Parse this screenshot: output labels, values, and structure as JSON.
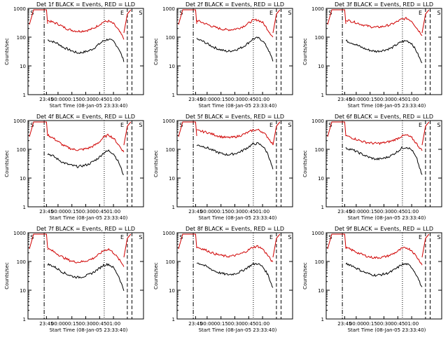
{
  "colors": {
    "events": "#000000",
    "lld": "#d00000"
  },
  "panel_common": {
    "xlabel": "Start Time (08-Jan-05 23:33:40)",
    "ylabel": "Counts/sec",
    "x_tick_labels": [
      "23:45",
      "00:00",
      "00:15",
      "00:30",
      "00:45",
      "01:00"
    ],
    "y_tick_labels": [
      "1",
      "10",
      "100",
      "1000"
    ],
    "ylim": [
      1,
      1000
    ],
    "yscale": "log",
    "marker_labels": [
      "S",
      "E",
      "S"
    ]
  },
  "chart_data": [
    {
      "type": "line",
      "title": "Det 1f BLACK = Events, RED = LLD",
      "series": [
        {
          "name": "Events",
          "color": "black",
          "values": [
            80,
            70,
            60,
            45,
            38,
            32,
            28,
            30,
            33,
            40,
            55,
            75,
            85,
            70,
            40,
            15
          ]
        },
        {
          "name": "LLD",
          "color": "red",
          "values": [
            380,
            330,
            290,
            230,
            190,
            170,
            160,
            165,
            175,
            200,
            260,
            340,
            360,
            290,
            170,
            90
          ]
        }
      ]
    },
    {
      "type": "line",
      "title": "Det 2f BLACK = Events, RED = LLD",
      "series": [
        {
          "name": "Events",
          "color": "black",
          "values": [
            85,
            75,
            60,
            48,
            40,
            35,
            32,
            34,
            38,
            45,
            60,
            85,
            95,
            75,
            40,
            15
          ]
        },
        {
          "name": "LLD",
          "color": "red",
          "values": [
            380,
            330,
            280,
            240,
            210,
            190,
            180,
            185,
            200,
            230,
            290,
            380,
            400,
            320,
            180,
            100
          ]
        }
      ]
    },
    {
      "type": "line",
      "title": "Det 3f BLACK = Events, RED = LLD",
      "series": [
        {
          "name": "Events",
          "color": "black",
          "values": [
            75,
            65,
            55,
            45,
            38,
            34,
            32,
            34,
            37,
            42,
            55,
            70,
            75,
            60,
            30,
            12
          ]
        },
        {
          "name": "LLD",
          "color": "red",
          "values": [
            400,
            360,
            320,
            280,
            250,
            230,
            220,
            230,
            250,
            280,
            340,
            420,
            450,
            360,
            200,
            120
          ]
        }
      ]
    },
    {
      "type": "line",
      "title": "Det 4f BLACK = Events, RED = LLD",
      "series": [
        {
          "name": "Events",
          "color": "black",
          "values": [
            70,
            60,
            45,
            35,
            30,
            27,
            25,
            27,
            30,
            38,
            50,
            75,
            90,
            70,
            35,
            12
          ]
        },
        {
          "name": "LLD",
          "color": "red",
          "values": [
            320,
            250,
            190,
            140,
            115,
            100,
            95,
            100,
            110,
            130,
            170,
            260,
            320,
            240,
            140,
            80
          ]
        }
      ]
    },
    {
      "type": "line",
      "title": "Det 5f BLACK = Events, RED = LLD",
      "series": [
        {
          "name": "Events",
          "color": "black",
          "values": [
            140,
            130,
            115,
            95,
            80,
            70,
            65,
            68,
            75,
            90,
            115,
            150,
            160,
            130,
            70,
            20
          ]
        },
        {
          "name": "LLD",
          "color": "red",
          "values": [
            450,
            420,
            390,
            340,
            300,
            270,
            255,
            260,
            280,
            320,
            380,
            460,
            480,
            400,
            260,
            150
          ]
        }
      ]
    },
    {
      "type": "line",
      "title": "Det 6f BLACK = Events, RED = LLD",
      "series": [
        {
          "name": "Events",
          "color": "black",
          "values": [
            110,
            100,
            85,
            70,
            58,
            50,
            45,
            47,
            52,
            62,
            80,
            110,
            120,
            95,
            45,
            12
          ]
        },
        {
          "name": "LLD",
          "color": "red",
          "values": [
            300,
            260,
            225,
            195,
            175,
            165,
            160,
            165,
            175,
            195,
            230,
            290,
            310,
            250,
            150,
            90
          ]
        }
      ]
    },
    {
      "type": "line",
      "title": "Det 7f BLACK = Events, RED = LLD",
      "series": [
        {
          "name": "Events",
          "color": "black",
          "values": [
            80,
            70,
            55,
            42,
            35,
            30,
            28,
            30,
            34,
            42,
            55,
            75,
            80,
            60,
            30,
            10
          ]
        },
        {
          "name": "LLD",
          "color": "red",
          "values": [
            280,
            230,
            180,
            140,
            115,
            100,
            95,
            100,
            110,
            130,
            170,
            240,
            270,
            200,
            120,
            70
          ]
        }
      ]
    },
    {
      "type": "line",
      "title": "Det 8f BLACK = Events, RED = LLD",
      "series": [
        {
          "name": "Events",
          "color": "black",
          "values": [
            90,
            80,
            65,
            52,
            43,
            38,
            35,
            36,
            40,
            48,
            62,
            80,
            85,
            65,
            35,
            12
          ]
        },
        {
          "name": "LLD",
          "color": "red",
          "values": [
            320,
            280,
            240,
            200,
            175,
            160,
            150,
            155,
            170,
            195,
            240,
            310,
            340,
            270,
            160,
            90
          ]
        }
      ]
    },
    {
      "type": "line",
      "title": "Det 9f BLACK = Events, RED = LLD",
      "series": [
        {
          "name": "Events",
          "color": "black",
          "values": [
            85,
            75,
            60,
            48,
            40,
            35,
            33,
            35,
            38,
            45,
            58,
            78,
            82,
            62,
            32,
            12
          ]
        },
        {
          "name": "LLD",
          "color": "red",
          "values": [
            300,
            260,
            215,
            180,
            155,
            140,
            135,
            140,
            150,
            175,
            215,
            280,
            300,
            240,
            140,
            80
          ]
        }
      ]
    }
  ]
}
